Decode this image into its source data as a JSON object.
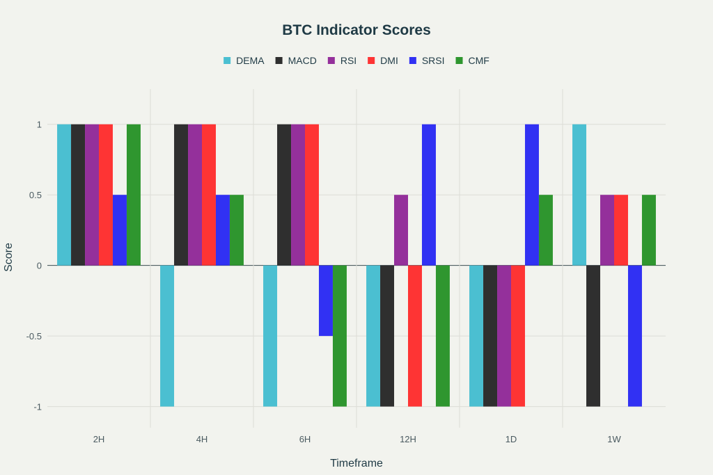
{
  "chart_data": {
    "type": "bar",
    "title": "BTC Indicator Scores",
    "xlabel": "Timeframe",
    "ylabel": "Score",
    "categories": [
      "2H",
      "4H",
      "6H",
      "12H",
      "1D",
      "1W"
    ],
    "ylim": [
      -1.15,
      1.25
    ],
    "yticks": [
      -1,
      -0.5,
      0,
      0.5,
      1
    ],
    "ytick_labels": [
      "-1",
      "-0.5",
      "0",
      "0.5",
      "1"
    ],
    "grid": true,
    "legend_position": "top-center",
    "series": [
      {
        "name": "DEMA",
        "color": "#4bbfd1",
        "values": [
          1,
          -1,
          -1,
          -1,
          -1,
          1
        ]
      },
      {
        "name": "MACD",
        "color": "#2f2f2f",
        "values": [
          1,
          1,
          1,
          -1,
          -1,
          -1
        ]
      },
      {
        "name": "RSI",
        "color": "#94309b",
        "values": [
          1,
          1,
          1,
          0.5,
          -1,
          0.5
        ]
      },
      {
        "name": "DMI",
        "color": "#fe3434",
        "values": [
          1,
          1,
          1,
          -1,
          -1,
          0.5
        ]
      },
      {
        "name": "SRSI",
        "color": "#3131f3",
        "values": [
          0.5,
          0.5,
          -0.5,
          1,
          1,
          -1
        ]
      },
      {
        "name": "CMF",
        "color": "#2f962f",
        "values": [
          1,
          0.5,
          -1,
          -1,
          0.5,
          0.5
        ]
      }
    ]
  }
}
